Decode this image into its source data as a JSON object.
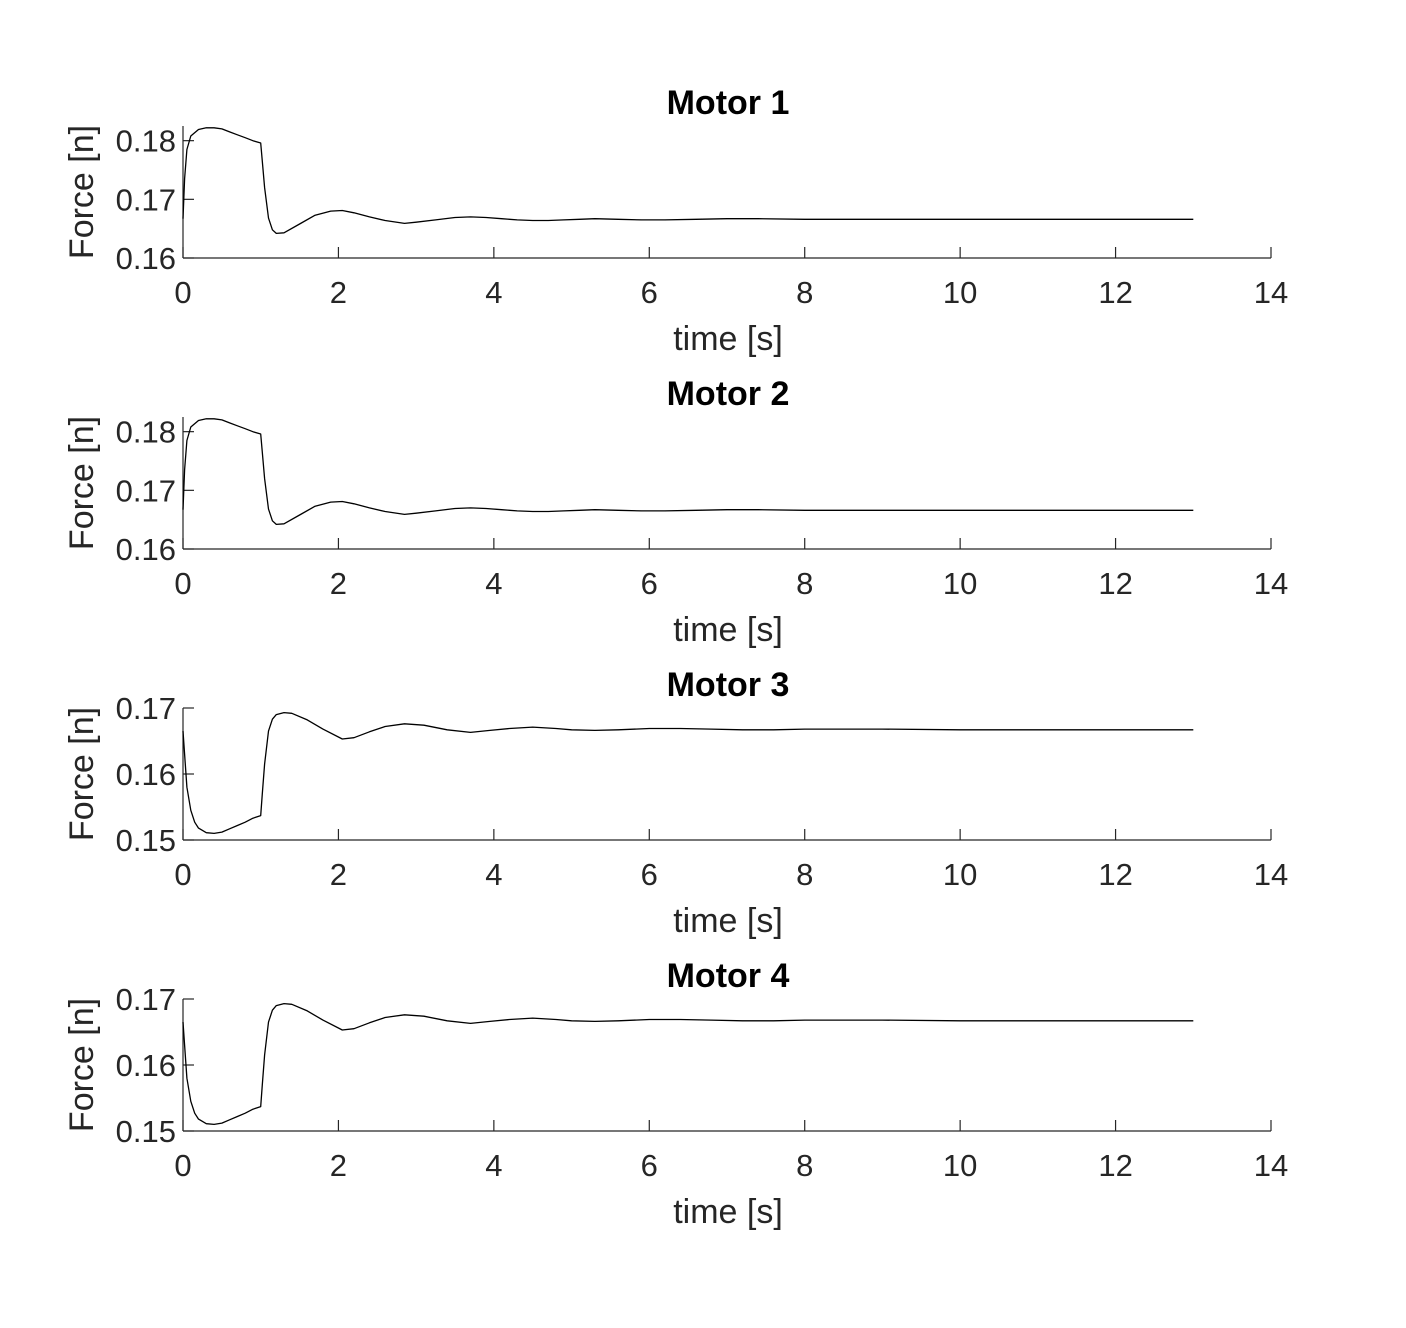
{
  "chart_data": [
    {
      "type": "line",
      "title": "Motor 1",
      "xlabel": "time [s]",
      "ylabel": "Force [n]",
      "xlim": [
        0,
        14
      ],
      "ylim": [
        0.16,
        0.1825
      ],
      "xticks": [
        "0",
        "2",
        "4",
        "6",
        "8",
        "10",
        "12",
        "14"
      ],
      "yticks": [
        "0.16",
        "0.17",
        "0.18"
      ],
      "grid": false,
      "x": [
        0,
        0.02,
        0.05,
        0.1,
        0.2,
        0.3,
        0.4,
        0.5,
        0.6,
        0.7,
        0.8,
        0.9,
        1.0,
        1.02,
        1.05,
        1.1,
        1.15,
        1.2,
        1.3,
        1.5,
        1.7,
        1.9,
        2.05,
        2.2,
        2.4,
        2.6,
        2.85,
        3.0,
        3.25,
        3.5,
        3.7,
        3.9,
        4.1,
        4.3,
        4.5,
        4.7,
        4.9,
        5.1,
        5.3,
        5.6,
        5.9,
        6.2,
        6.6,
        7.0,
        7.4,
        8.0,
        9.0,
        10.0,
        11.0,
        12.0,
        13.0
      ],
      "y": [
        0.1667,
        0.1735,
        0.1785,
        0.1808,
        0.1819,
        0.1822,
        0.1822,
        0.182,
        0.1815,
        0.181,
        0.1805,
        0.18,
        0.1796,
        0.1765,
        0.172,
        0.1668,
        0.1648,
        0.1642,
        0.1643,
        0.1658,
        0.1673,
        0.168,
        0.1681,
        0.1677,
        0.167,
        0.1664,
        0.1659,
        0.1661,
        0.1665,
        0.1669,
        0.167,
        0.1669,
        0.1667,
        0.1665,
        0.1664,
        0.1664,
        0.1665,
        0.1666,
        0.1667,
        0.1666,
        0.1665,
        0.1665,
        0.1666,
        0.1667,
        0.1667,
        0.1666,
        0.1666,
        0.1666,
        0.1666,
        0.1666,
        0.1666
      ]
    },
    {
      "type": "line",
      "title": "Motor 2",
      "xlabel": "time [s]",
      "ylabel": "Force [n]",
      "xlim": [
        0,
        14
      ],
      "ylim": [
        0.16,
        0.1825
      ],
      "xticks": [
        "0",
        "2",
        "4",
        "6",
        "8",
        "10",
        "12",
        "14"
      ],
      "yticks": [
        "0.16",
        "0.17",
        "0.18"
      ],
      "grid": false,
      "x": [
        0,
        0.02,
        0.05,
        0.1,
        0.2,
        0.3,
        0.4,
        0.5,
        0.6,
        0.7,
        0.8,
        0.9,
        1.0,
        1.02,
        1.05,
        1.1,
        1.15,
        1.2,
        1.3,
        1.5,
        1.7,
        1.9,
        2.05,
        2.2,
        2.4,
        2.6,
        2.85,
        3.0,
        3.25,
        3.5,
        3.7,
        3.9,
        4.1,
        4.3,
        4.5,
        4.7,
        4.9,
        5.1,
        5.3,
        5.6,
        5.9,
        6.2,
        6.6,
        7.0,
        7.4,
        8.0,
        9.0,
        10.0,
        11.0,
        12.0,
        13.0
      ],
      "y": [
        0.1667,
        0.1735,
        0.1785,
        0.1808,
        0.1819,
        0.1822,
        0.1822,
        0.182,
        0.1815,
        0.181,
        0.1805,
        0.18,
        0.1796,
        0.1765,
        0.172,
        0.1668,
        0.1648,
        0.1642,
        0.1643,
        0.1658,
        0.1673,
        0.168,
        0.1681,
        0.1677,
        0.167,
        0.1664,
        0.1659,
        0.1661,
        0.1665,
        0.1669,
        0.167,
        0.1669,
        0.1667,
        0.1665,
        0.1664,
        0.1664,
        0.1665,
        0.1666,
        0.1667,
        0.1666,
        0.1665,
        0.1665,
        0.1666,
        0.1667,
        0.1667,
        0.1666,
        0.1666,
        0.1666,
        0.1666,
        0.1666,
        0.1666
      ]
    },
    {
      "type": "line",
      "title": "Motor 3",
      "xlabel": "time [s]",
      "ylabel": "Force [n]",
      "xlim": [
        0,
        14
      ],
      "ylim": [
        0.15,
        0.17
      ],
      "xticks": [
        "0",
        "2",
        "4",
        "6",
        "8",
        "10",
        "12",
        "14"
      ],
      "yticks": [
        "0.15",
        "0.16",
        "0.17"
      ],
      "grid": false,
      "x": [
        0,
        0.02,
        0.05,
        0.1,
        0.15,
        0.2,
        0.3,
        0.4,
        0.5,
        0.6,
        0.7,
        0.8,
        0.9,
        1.0,
        1.02,
        1.05,
        1.1,
        1.15,
        1.2,
        1.3,
        1.4,
        1.6,
        1.8,
        2.05,
        2.2,
        2.4,
        2.6,
        2.85,
        3.1,
        3.4,
        3.7,
        3.95,
        4.2,
        4.5,
        4.8,
        5.0,
        5.3,
        5.6,
        6.0,
        6.4,
        6.8,
        7.2,
        7.6,
        8.0,
        9.0,
        10.0,
        11.0,
        12.0,
        13.0
      ],
      "y": [
        0.1665,
        0.163,
        0.158,
        0.1545,
        0.1527,
        0.1518,
        0.1511,
        0.151,
        0.1512,
        0.1517,
        0.1522,
        0.1527,
        0.1533,
        0.1537,
        0.157,
        0.1615,
        0.1665,
        0.1683,
        0.169,
        0.1693,
        0.1692,
        0.1682,
        0.1668,
        0.1653,
        0.1655,
        0.1664,
        0.1672,
        0.1676,
        0.1674,
        0.1667,
        0.1663,
        0.1666,
        0.1669,
        0.1671,
        0.1669,
        0.1667,
        0.1666,
        0.1667,
        0.1669,
        0.1669,
        0.1668,
        0.1667,
        0.1667,
        0.1668,
        0.1668,
        0.1667,
        0.1667,
        0.1667,
        0.1667
      ]
    },
    {
      "type": "line",
      "title": "Motor 4",
      "xlabel": "time [s]",
      "ylabel": "Force [n]",
      "xlim": [
        0,
        14
      ],
      "ylim": [
        0.15,
        0.17
      ],
      "xticks": [
        "0",
        "2",
        "4",
        "6",
        "8",
        "10",
        "12",
        "14"
      ],
      "yticks": [
        "0.15",
        "0.16",
        "0.17"
      ],
      "grid": false,
      "x": [
        0,
        0.02,
        0.05,
        0.1,
        0.15,
        0.2,
        0.3,
        0.4,
        0.5,
        0.6,
        0.7,
        0.8,
        0.9,
        1.0,
        1.02,
        1.05,
        1.1,
        1.15,
        1.2,
        1.3,
        1.4,
        1.6,
        1.8,
        2.05,
        2.2,
        2.4,
        2.6,
        2.85,
        3.1,
        3.4,
        3.7,
        3.95,
        4.2,
        4.5,
        4.8,
        5.0,
        5.3,
        5.6,
        6.0,
        6.4,
        6.8,
        7.2,
        7.6,
        8.0,
        9.0,
        10.0,
        11.0,
        12.0,
        13.0
      ],
      "y": [
        0.1665,
        0.163,
        0.158,
        0.1545,
        0.1527,
        0.1518,
        0.1511,
        0.151,
        0.1512,
        0.1517,
        0.1522,
        0.1527,
        0.1533,
        0.1537,
        0.157,
        0.1615,
        0.1665,
        0.1683,
        0.169,
        0.1693,
        0.1692,
        0.1682,
        0.1668,
        0.1653,
        0.1655,
        0.1664,
        0.1672,
        0.1676,
        0.1674,
        0.1667,
        0.1663,
        0.1666,
        0.1669,
        0.1671,
        0.1669,
        0.1667,
        0.1666,
        0.1667,
        0.1669,
        0.1669,
        0.1668,
        0.1667,
        0.1667,
        0.1668,
        0.1668,
        0.1667,
        0.1667,
        0.1667,
        0.1667
      ]
    }
  ]
}
